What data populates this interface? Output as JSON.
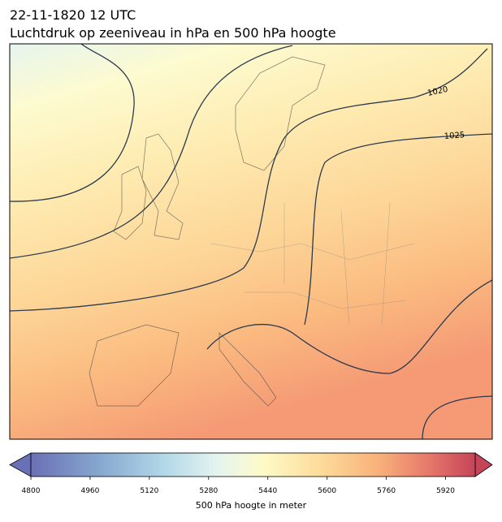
{
  "header": {
    "title": "22-11-1820 12 UTC",
    "subtitle": "Luchtdruk op zeeniveau in hPa en 500 hPa hoogte"
  },
  "map": {
    "contour_labels": [
      "1020",
      "1025"
    ]
  },
  "colorbar": {
    "label": "500 hPa hoogte in meter",
    "lim": [
      4800,
      6000
    ],
    "ticks": [
      4800,
      4960,
      5120,
      5280,
      5440,
      5600,
      5760,
      5920
    ]
  }
}
